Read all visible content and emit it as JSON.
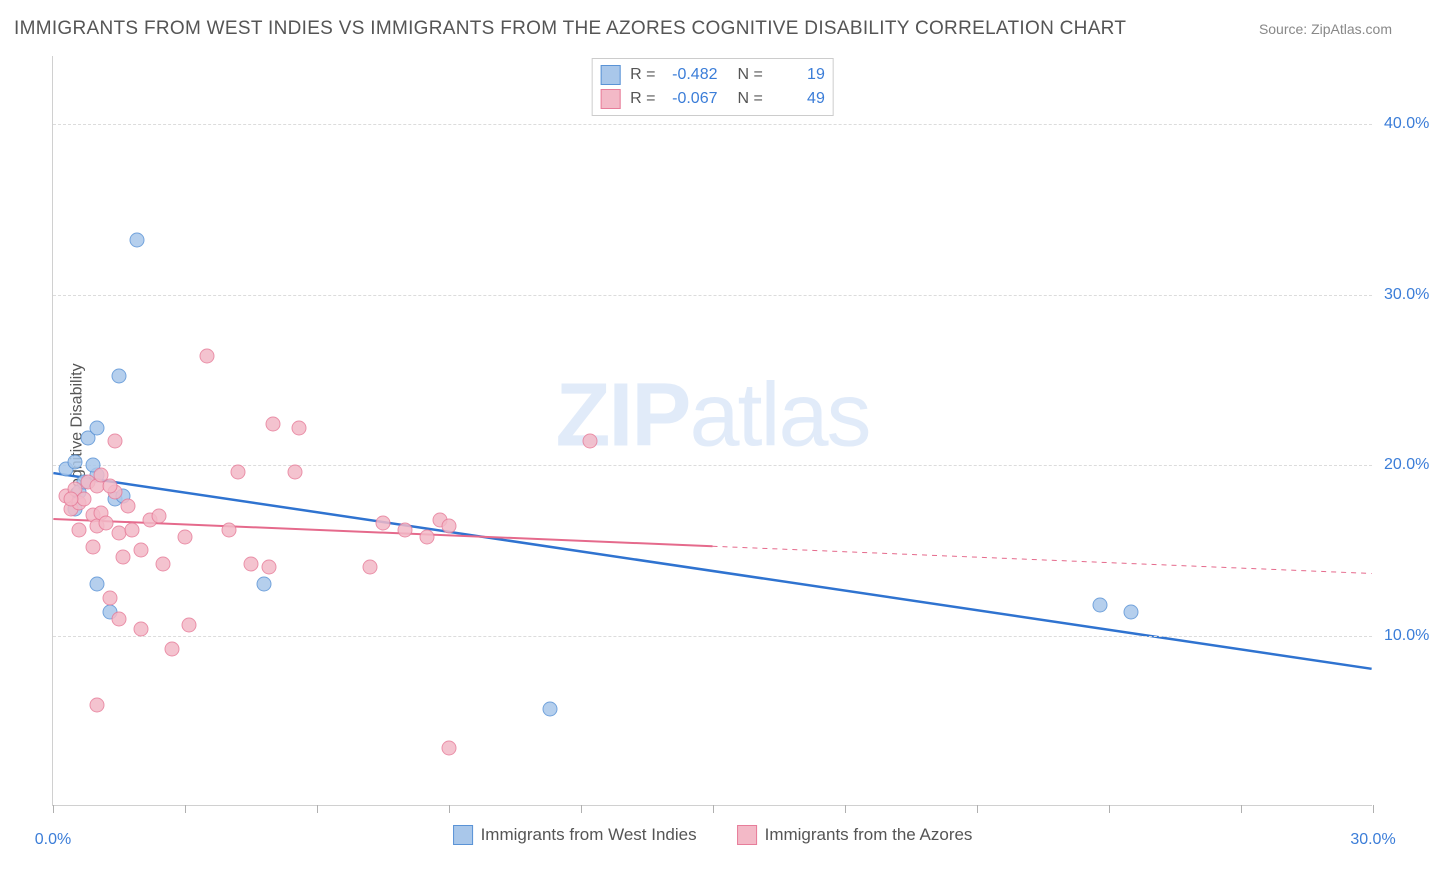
{
  "title": "IMMIGRANTS FROM WEST INDIES VS IMMIGRANTS FROM THE AZORES COGNITIVE DISABILITY CORRELATION CHART",
  "source_label": "Source:",
  "source_name": "ZipAtlas.com",
  "watermark": {
    "bold": "ZIP",
    "light": "atlas"
  },
  "ylabel": "Cognitive Disability",
  "axes": {
    "xlim": [
      0,
      30
    ],
    "ylim": [
      0,
      44
    ],
    "xticks": [
      0,
      3,
      6,
      9,
      12,
      15,
      18,
      21,
      24,
      27,
      30
    ],
    "xtick_labels": {
      "0": "0.0%",
      "30": "30.0%"
    },
    "yticks": [
      10,
      20,
      30,
      40
    ],
    "ytick_labels": {
      "10": "10.0%",
      "20": "20.0%",
      "30": "30.0%",
      "40": "40.0%"
    }
  },
  "series": [
    {
      "key": "west_indies",
      "label": "Immigrants from West Indies",
      "fill": "#a9c7ea",
      "stroke": "#5a93d6",
      "line_color": "#2f73d0",
      "line_width": 2.5,
      "R": "-0.482",
      "N": "19",
      "trend": {
        "x1": 0,
        "y1": 19.5,
        "x2": 30,
        "y2": 8.0,
        "solid_to_x": 30
      },
      "points": [
        [
          0.3,
          19.8
        ],
        [
          0.5,
          20.2
        ],
        [
          0.6,
          18.4
        ],
        [
          0.7,
          19.0
        ],
        [
          0.8,
          21.6
        ],
        [
          1.0,
          22.2
        ],
        [
          1.0,
          19.4
        ],
        [
          1.4,
          18.0
        ],
        [
          1.5,
          25.2
        ],
        [
          1.9,
          33.2
        ],
        [
          1.0,
          13.0
        ],
        [
          1.3,
          11.4
        ],
        [
          4.8,
          13.0
        ],
        [
          0.5,
          17.4
        ],
        [
          0.9,
          20.0
        ],
        [
          1.6,
          18.2
        ],
        [
          11.3,
          5.7
        ],
        [
          23.8,
          11.8
        ],
        [
          24.5,
          11.4
        ]
      ]
    },
    {
      "key": "azores",
      "label": "Immigrants from the Azores",
      "fill": "#f3b9c7",
      "stroke": "#e77d9a",
      "line_color": "#e56a8c",
      "line_width": 2,
      "R": "-0.067",
      "N": "49",
      "trend": {
        "x1": 0,
        "y1": 16.8,
        "x2": 30,
        "y2": 13.6,
        "solid_to_x": 15
      },
      "points": [
        [
          0.3,
          18.2
        ],
        [
          0.4,
          17.4
        ],
        [
          0.5,
          18.6
        ],
        [
          0.6,
          17.8
        ],
        [
          0.7,
          18.0
        ],
        [
          0.8,
          19.0
        ],
        [
          0.9,
          17.1
        ],
        [
          1.0,
          18.8
        ],
        [
          1.0,
          16.4
        ],
        [
          1.1,
          17.2
        ],
        [
          1.2,
          16.6
        ],
        [
          1.4,
          18.4
        ],
        [
          1.5,
          16.0
        ],
        [
          1.6,
          14.6
        ],
        [
          1.8,
          16.2
        ],
        [
          2.0,
          15.0
        ],
        [
          2.0,
          10.4
        ],
        [
          2.2,
          16.8
        ],
        [
          2.5,
          14.2
        ],
        [
          2.7,
          9.2
        ],
        [
          3.0,
          15.8
        ],
        [
          1.3,
          12.2
        ],
        [
          1.5,
          11.0
        ],
        [
          1.0,
          5.9
        ],
        [
          3.5,
          26.4
        ],
        [
          1.4,
          21.4
        ],
        [
          3.1,
          10.6
        ],
        [
          4.2,
          19.6
        ],
        [
          4.5,
          14.2
        ],
        [
          4.0,
          16.2
        ],
        [
          5.0,
          22.4
        ],
        [
          5.5,
          19.6
        ],
        [
          5.6,
          22.2
        ],
        [
          4.9,
          14.0
        ],
        [
          7.2,
          14.0
        ],
        [
          7.5,
          16.6
        ],
        [
          8.0,
          16.2
        ],
        [
          8.5,
          15.8
        ],
        [
          8.8,
          16.8
        ],
        [
          9.0,
          16.4
        ],
        [
          9.0,
          3.4
        ],
        [
          12.2,
          21.4
        ],
        [
          1.1,
          19.4
        ],
        [
          0.6,
          16.2
        ],
        [
          0.9,
          15.2
        ],
        [
          1.7,
          17.6
        ],
        [
          2.4,
          17.0
        ],
        [
          0.4,
          18.0
        ],
        [
          1.3,
          18.8
        ]
      ]
    }
  ]
}
